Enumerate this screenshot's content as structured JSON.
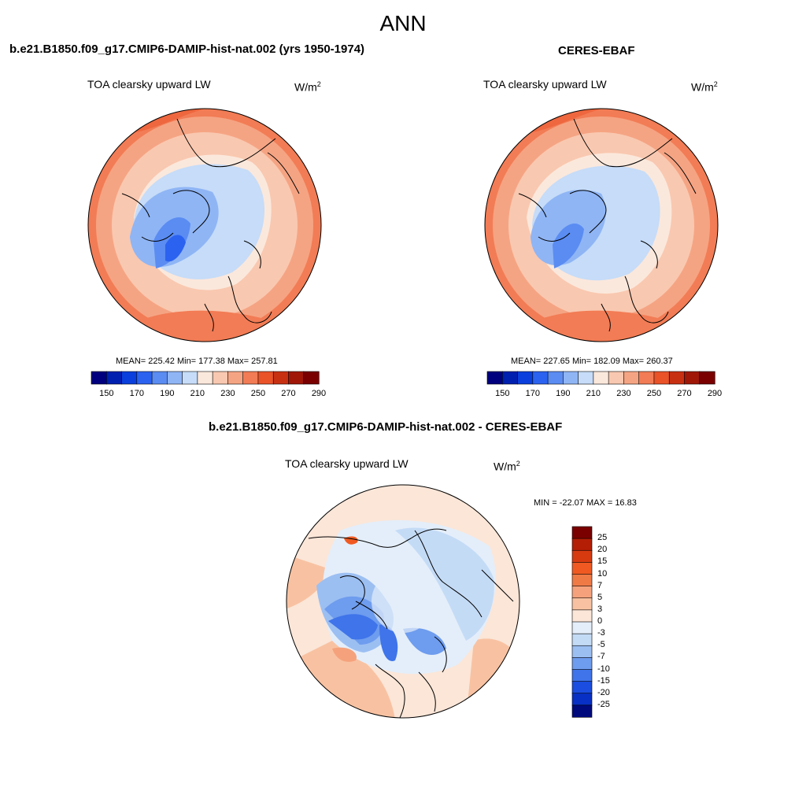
{
  "figure": {
    "title": "ANN"
  },
  "panels": [
    {
      "title": "b.e21.B1850.f09_g17.CMIP6-DAMIP-hist-nat.002 (yrs 1950-1974)",
      "variable": "TOA clearsky upward LW",
      "units_base": "W/m",
      "units_exp": "2",
      "stats": "MEAN= 225.42  Min= 177.38  Max= 257.81"
    },
    {
      "title": "CERES-EBAF",
      "variable": "TOA clearsky upward LW",
      "units_base": "W/m",
      "units_exp": "2",
      "stats": "MEAN= 227.65  Min= 182.09  Max= 260.37"
    },
    {
      "title": "b.e21.B1850.f09_g17.CMIP6-DAMIP-hist-nat.002 - CERES-EBAF",
      "variable": "TOA clearsky upward LW",
      "units_base": "W/m",
      "units_exp": "2",
      "stats": "MIN = -22.07 MAX =  16.83"
    }
  ],
  "colorbar_fields": {
    "ticks": [
      "150",
      "170",
      "190",
      "210",
      "230",
      "250",
      "270",
      "290"
    ],
    "colors": [
      "#00007f",
      "#0020b0",
      "#0a3fdd",
      "#2b62f0",
      "#5a8cf2",
      "#8fb5f5",
      "#c6dcf8",
      "#fbe8dc",
      "#f9c8b0",
      "#f5a483",
      "#f27c55",
      "#ea5228",
      "#c83012",
      "#a01708",
      "#7a0000"
    ]
  },
  "colorbar_diff": {
    "labels": [
      "25",
      "20",
      "15",
      "10",
      "7",
      "5",
      "3",
      "0",
      "-3",
      "-5",
      "-7",
      "-10",
      "-15",
      "-20",
      "-25"
    ],
    "colors": [
      "#7a0000",
      "#b41e05",
      "#d83a10",
      "#f05a22",
      "#f07a46",
      "#f5a27c",
      "#f8c2a2",
      "#fbe6d8",
      "#e4eefa",
      "#c4dbf6",
      "#9cbff2",
      "#6e9cee",
      "#3f74ea",
      "#1a4de0",
      "#0830c4",
      "#000a7c"
    ]
  }
}
